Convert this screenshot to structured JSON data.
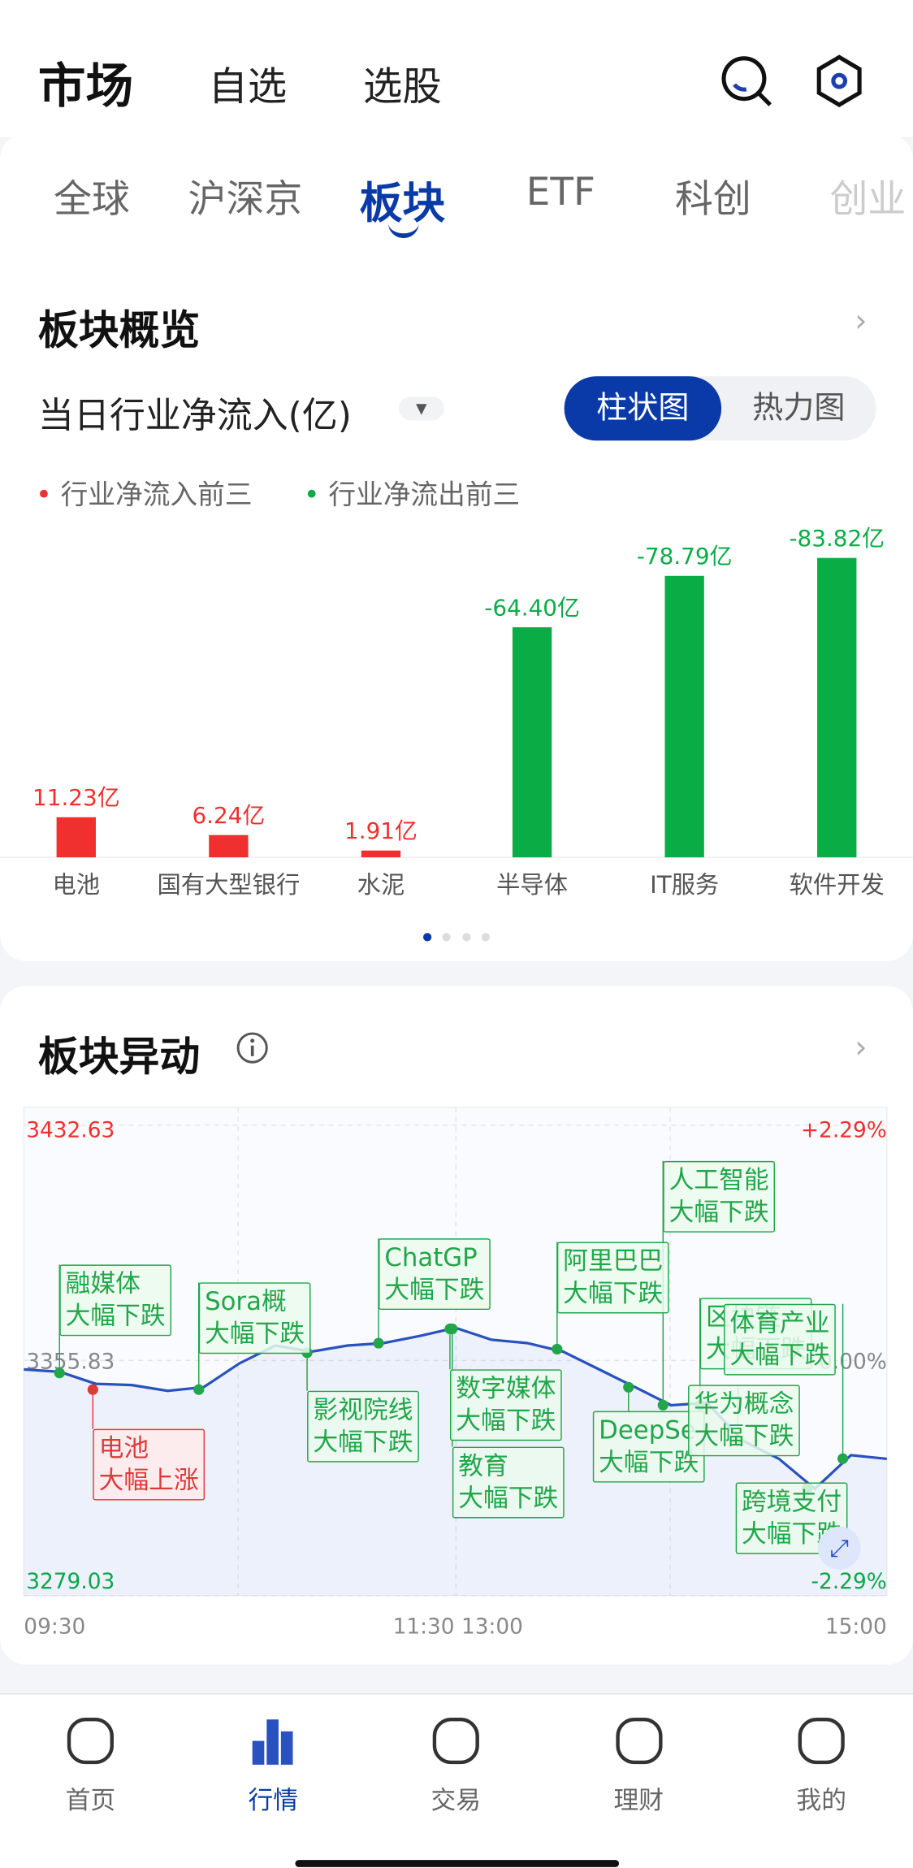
{
  "header": {
    "tabs": [
      "市场",
      "自选",
      "选股"
    ]
  },
  "subtabs": [
    "全球",
    "沪深京",
    "板块",
    "ETF",
    "科创",
    "创业"
  ],
  "overview": {
    "title": "板块概览",
    "metric": "当日行业净流入(亿)",
    "toggle": [
      "柱状图",
      "热力图"
    ],
    "legend": [
      "行业净流入前三",
      "行业净流出前三"
    ]
  },
  "chart_data": [
    {
      "type": "bar",
      "categories": [
        "电池",
        "国有大型银行",
        "水泥",
        "半导体",
        "IT服务",
        "软件开发"
      ],
      "values": [
        11.23,
        6.24,
        1.91,
        -64.4,
        -78.79,
        -83.82
      ],
      "value_labels": [
        "11.23亿",
        "6.24亿",
        "1.91亿",
        "-64.40亿",
        "-78.79亿",
        "-83.82亿"
      ],
      "colors": [
        "#f0302f",
        "#f0302f",
        "#f0302f",
        "#0aad45",
        "#0aad45",
        "#0aad45"
      ]
    },
    {
      "type": "line",
      "title": "板块异动",
      "series": [
        {
          "color": "#2a52be",
          "values": [
            3352.9,
            3352.1,
            3348.2,
            3347.8,
            3345.9,
            3347.1,
            3354.9,
            3360.7,
            3358.7,
            3360.7,
            3361.5,
            3363.8,
            3366.5,
            3362.6,
            3361.5,
            3358.7,
            3352.9,
            3347.1,
            3341.2,
            3342.0,
            3329.6,
            3323.7,
            3313.9,
            3324.9,
            3323.7
          ]
        }
      ],
      "ylim": [
        3279.03,
        3432.63
      ],
      "yticks": [
        3279.03,
        3355.83,
        3432.63
      ],
      "y2lim": [
        -2.29,
        2.29
      ],
      "y2ticks": [
        {
          "value": -2.29,
          "label": "-2.29%"
        },
        {
          "value": 0,
          "label": "0.00%"
        },
        {
          "value": 2.29,
          "label": "+2.29%"
        }
      ],
      "xticks": [
        "09:30",
        "11:30 13:00",
        "15:00"
      ],
      "annotations": [
        {
          "name": "融媒体",
          "label": "大幅下跌"
        },
        {
          "name": "Sora概",
          "label": "大幅下跌"
        },
        {
          "name": "ChatGP",
          "label": "大幅下跌"
        },
        {
          "name": "阿里巴巴",
          "label": "大幅下跌"
        },
        {
          "name": "人工智能",
          "label": "大幅下跌"
        },
        {
          "name": "区块链",
          "label": "大幅下跌"
        },
        {
          "name": "体育产业",
          "label": "大幅下跌"
        },
        {
          "name": "电池",
          "label": "大幅上涨"
        },
        {
          "name": "影视院线",
          "label": "大幅下跌"
        },
        {
          "name": "数字媒体",
          "label": "大幅下跌"
        },
        {
          "name": "教育",
          "label": "大幅下跌"
        },
        {
          "name": "DeepSe",
          "label": "大幅下跌"
        },
        {
          "name": "华为概念",
          "label": "大幅下跌"
        },
        {
          "name": "跨境支付",
          "label": "大幅下跌"
        }
      ]
    }
  ],
  "nav": [
    "首页",
    "行情",
    "交易",
    "理财",
    "我的"
  ]
}
